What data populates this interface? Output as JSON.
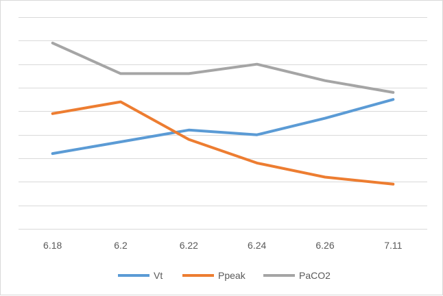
{
  "chart_data": {
    "type": "line",
    "title": "",
    "xlabel": "",
    "ylabel": "",
    "categories": [
      "6.18",
      "6.2",
      "6.22",
      "6.24",
      "6.26",
      "7.11"
    ],
    "ylim": [
      0,
      9
    ],
    "y_gridlines": 9,
    "grid": true,
    "y_tick_labels_shown": false,
    "legend_position": "bottom",
    "series": [
      {
        "name": "Vt",
        "color": "#5b9bd5",
        "values": [
          3.2,
          3.7,
          4.2,
          4.0,
          4.7,
          5.5
        ]
      },
      {
        "name": "Ppeak",
        "color": "#ed7d31",
        "values": [
          4.9,
          5.4,
          3.8,
          2.8,
          2.2,
          1.9
        ]
      },
      {
        "name": "PaCO2",
        "color": "#a5a5a5",
        "values": [
          7.9,
          6.6,
          6.6,
          7.0,
          6.3,
          5.8
        ]
      }
    ]
  }
}
